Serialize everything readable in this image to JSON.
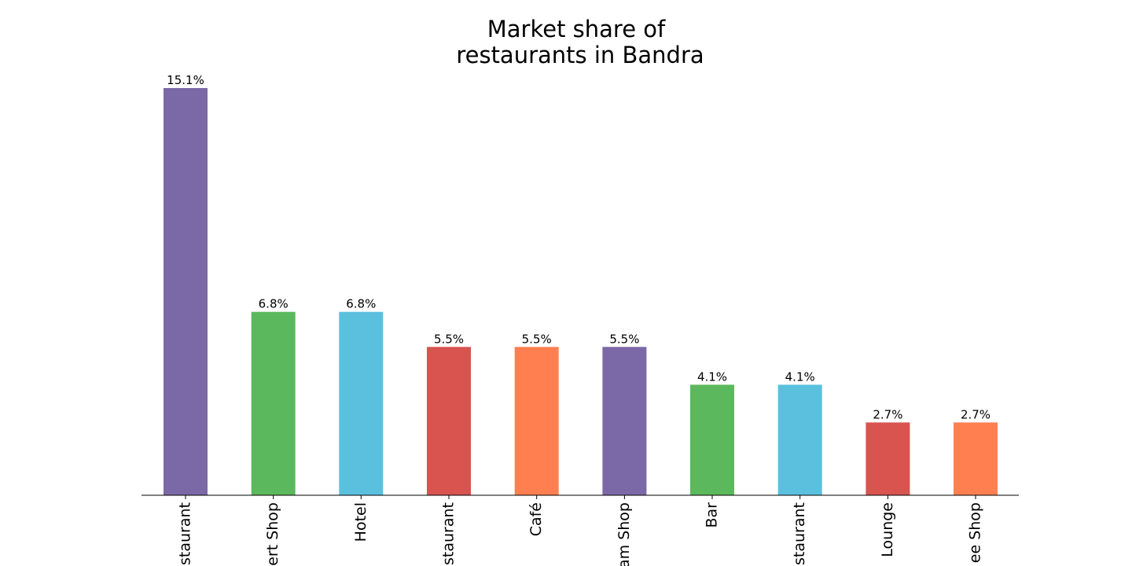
{
  "chart_data": {
    "type": "bar",
    "title_lines": [
      "Market share of",
      "restaurants in Bandra"
    ],
    "categories": [
      "staurant",
      "ert Shop",
      "Hotel",
      "staurant",
      "Café",
      "am Shop",
      "Bar",
      "staurant",
      "Lounge",
      "ee Shop"
    ],
    "values": [
      15.1,
      6.8,
      6.8,
      5.5,
      5.5,
      5.5,
      4.1,
      4.1,
      2.7,
      2.7
    ],
    "value_labels": [
      "15.1%",
      "6.8%",
      "6.8%",
      "5.5%",
      "5.5%",
      "5.5%",
      "4.1%",
      "4.1%",
      "2.7%",
      "2.7%"
    ],
    "colors": [
      "#7b68a6",
      "#5cb85c",
      "#5bc0de",
      "#d9534f",
      "#ff7f50",
      "#7b68a6",
      "#5cb85c",
      "#5bc0de",
      "#d9534f",
      "#ff7f50"
    ],
    "ylim": [
      0,
      15.1
    ],
    "xlabel": "",
    "ylabel": "",
    "grid": false,
    "legend": "none"
  }
}
